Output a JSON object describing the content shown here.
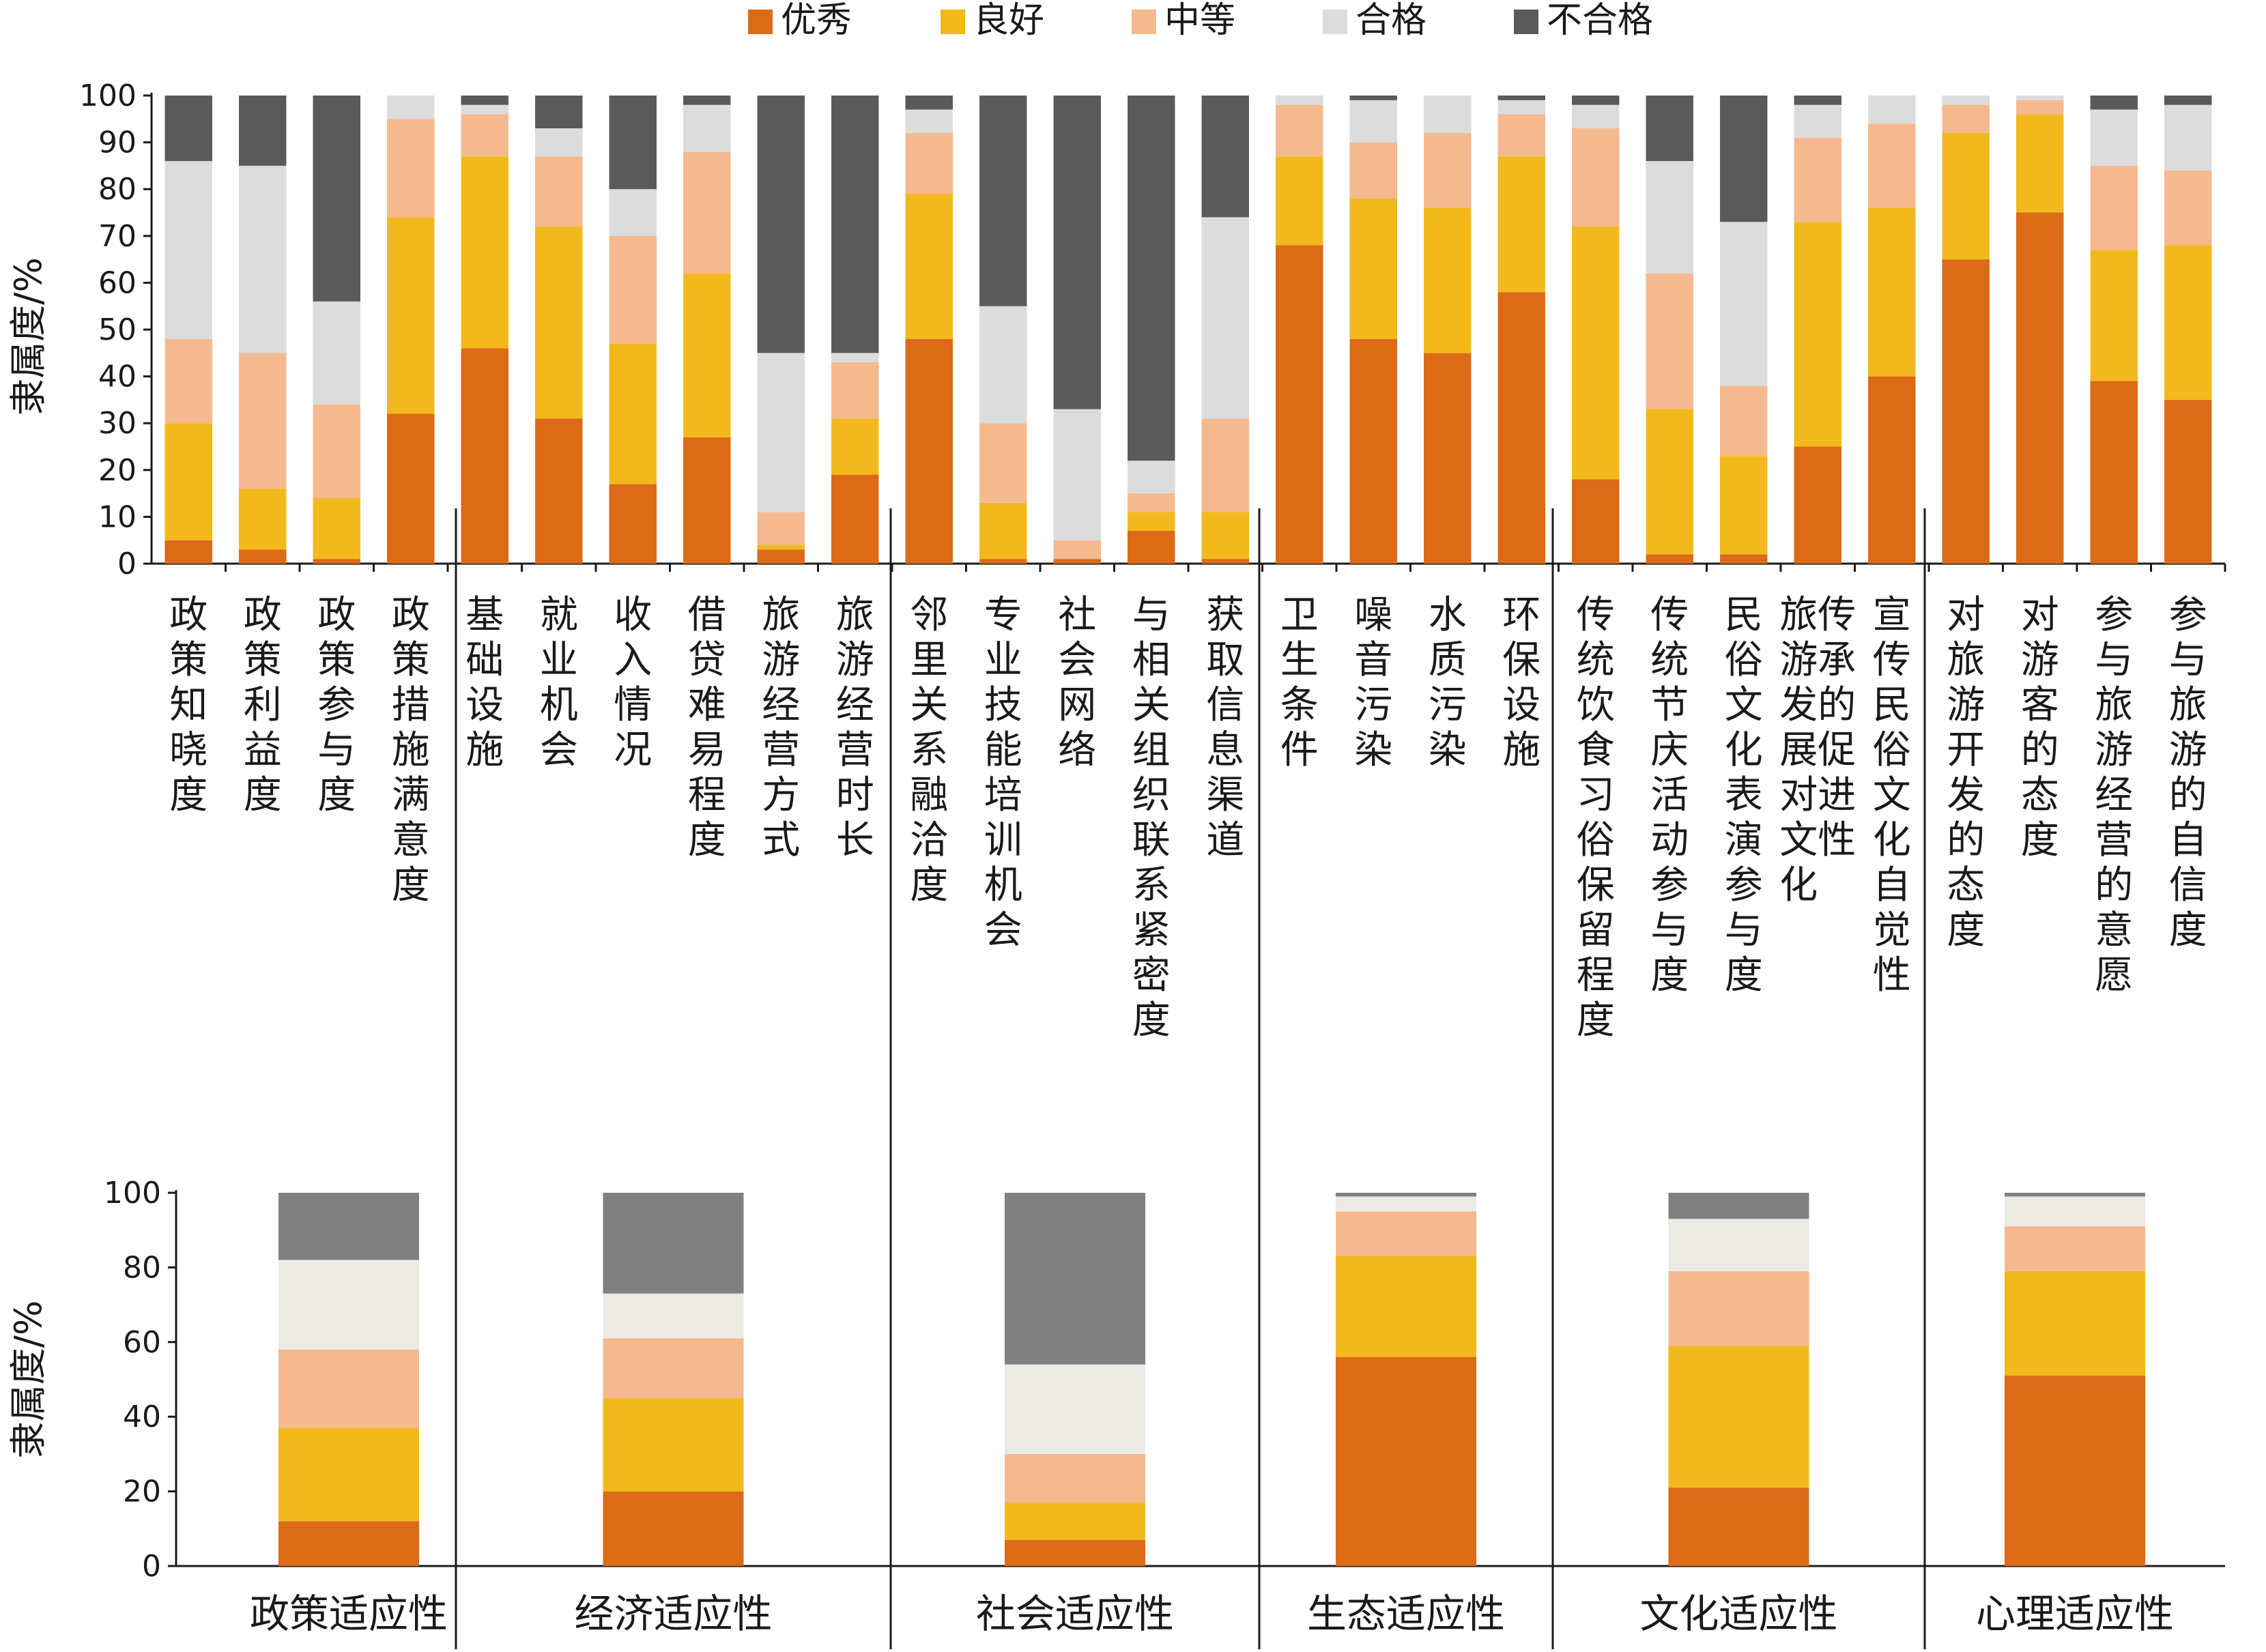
{
  "colors": {
    "优秀": "#dc6a17",
    "良好": "#f2b91c",
    "中等": "#f4b98f",
    "合格": "#dcdcdc",
    "合格_bottom": "#ecebe3",
    "不合格": "#5a5a5a",
    "不合格_bottom": "#808080"
  },
  "legend": [
    "优秀",
    "良好",
    "中等",
    "合格",
    "不合格"
  ],
  "chart_data": [
    {
      "type": "bar",
      "stacked": true,
      "ylabel": "隶属度/%",
      "ylim": [
        0,
        100
      ],
      "yticks": [
        0,
        10,
        20,
        30,
        40,
        50,
        60,
        70,
        80,
        90,
        100
      ],
      "legend_position": "top",
      "categories": [
        "政策知晓度",
        "政策利益度",
        "政策参与度",
        "政策措施满意度",
        "基础设施",
        "就业机会",
        "收入情况",
        "借贷难易程度",
        "旅游经营方式",
        "旅游经营时长",
        "邻里关系融洽度",
        "专业技能培训机会",
        "社会网络",
        "与相关组织联系紧密度",
        "获取信息渠道",
        "卫生条件",
        "噪音污染",
        "水质污染",
        "环保设施",
        "传统饮食习俗保留程度",
        "传统节庆活动参与度",
        "民俗文化表演参与度",
        "旅游发展对文化传承的促进性",
        "宣传民俗文化自觉性",
        "对旅游开发的态度",
        "对游客的态度",
        "参与旅游经营的意愿",
        "参与旅游的自信度"
      ],
      "series": [
        {
          "name": "优秀",
          "values": [
            5,
            3,
            1,
            32,
            46,
            31,
            17,
            27,
            3,
            19,
            48,
            1,
            1,
            7,
            1,
            68,
            48,
            45,
            58,
            18,
            2,
            2,
            25,
            40,
            65,
            75,
            39,
            35
          ]
        },
        {
          "name": "良好",
          "values": [
            25,
            13,
            13,
            42,
            41,
            41,
            30,
            35,
            1,
            12,
            31,
            12,
            0,
            4,
            10,
            19,
            30,
            31,
            29,
            54,
            31,
            21,
            48,
            36,
            27,
            21,
            28,
            33
          ]
        },
        {
          "name": "中等",
          "values": [
            18,
            29,
            20,
            21,
            9,
            15,
            23,
            26,
            7,
            12,
            13,
            17,
            4,
            4,
            20,
            11,
            12,
            16,
            9,
            21,
            29,
            15,
            18,
            18,
            6,
            3,
            18,
            16
          ]
        },
        {
          "name": "合格",
          "values": [
            38,
            40,
            22,
            5,
            2,
            6,
            10,
            10,
            34,
            2,
            5,
            25,
            28,
            7,
            43,
            2,
            9,
            8,
            3,
            5,
            24,
            35,
            7,
            6,
            2,
            1,
            12,
            14
          ]
        },
        {
          "name": "不合格",
          "values": [
            14,
            15,
            44,
            0,
            2,
            7,
            20,
            2,
            55,
            55,
            3,
            45,
            67,
            78,
            26,
            0,
            1,
            0,
            1,
            2,
            14,
            27,
            2,
            0,
            0,
            0,
            3,
            2
          ]
        }
      ]
    },
    {
      "type": "bar",
      "stacked": true,
      "ylabel": "隶属度/%",
      "ylim": [
        0,
        100
      ],
      "yticks": [
        0,
        20,
        40,
        60,
        80,
        100
      ],
      "categories": [
        "政策适应性",
        "经济适应性",
        "社会适应性",
        "生态适应性",
        "文化适应性",
        "心理适应性"
      ],
      "series": [
        {
          "name": "优秀",
          "values": [
            12,
            20,
            7,
            56,
            21,
            51
          ]
        },
        {
          "name": "良好",
          "values": [
            25,
            25,
            10,
            27,
            38,
            28
          ]
        },
        {
          "name": "中等",
          "values": [
            21,
            16,
            13,
            12,
            20,
            12
          ]
        },
        {
          "name": "合格",
          "values": [
            24,
            12,
            24,
            4,
            14,
            8
          ]
        },
        {
          "name": "不合格",
          "values": [
            18,
            27,
            46,
            1,
            7,
            1
          ]
        }
      ]
    }
  ]
}
